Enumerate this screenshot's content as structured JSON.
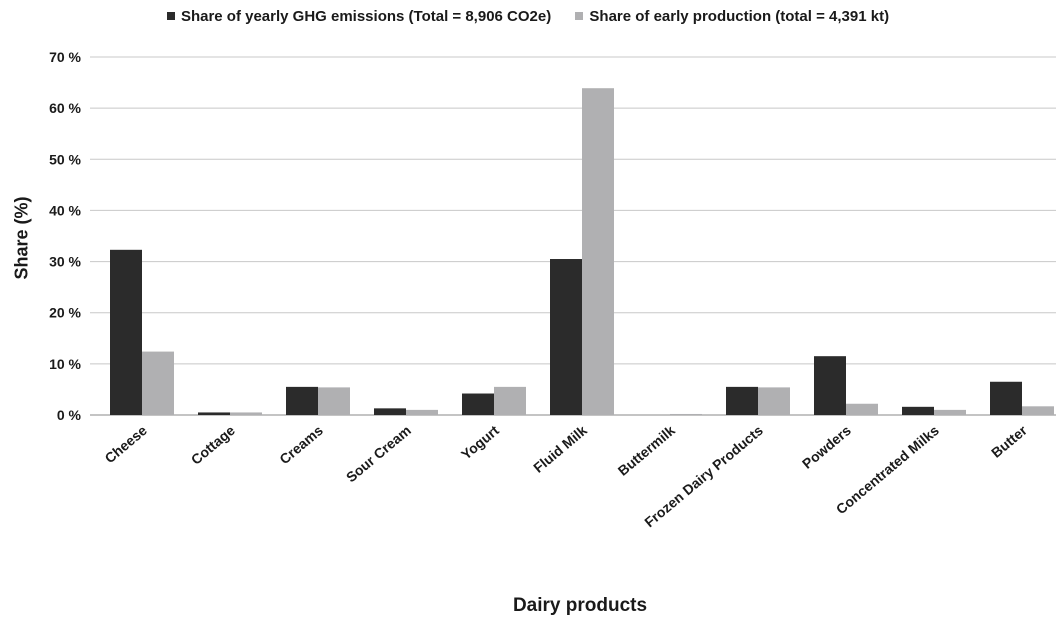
{
  "chart_data": {
    "type": "bar",
    "categories": [
      "Cheese",
      "Cottage",
      "Creams",
      "Sour Cream",
      "Yogurt",
      "Fluid Milk",
      "Buttermilk",
      "Frozen Dairy Products",
      "Powders",
      "Concentrated Milks",
      "Butter"
    ],
    "series": [
      {
        "name": "Share of yearly GHG emissions (Total = 8,906 CO2e)",
        "color": "#2b2b2b",
        "values": [
          32.3,
          0.5,
          5.5,
          1.3,
          4.2,
          30.5,
          0.0,
          5.5,
          11.5,
          1.6,
          6.5
        ]
      },
      {
        "name": "Share of early production (total = 4,391 kt)",
        "color": "#b0b0b2",
        "values": [
          12.4,
          0.5,
          5.4,
          1.0,
          5.5,
          63.9,
          0.2,
          5.4,
          2.2,
          1.0,
          1.7
        ]
      }
    ],
    "xlabel": "Dairy products",
    "ylabel": "Share (%)",
    "ylim": [
      0,
      70
    ],
    "yticks": [
      "0 %",
      "10 %",
      "20 %",
      "30 %",
      "40 %",
      "50 %",
      "60 %",
      "70 %"
    ],
    "grid": true,
    "legend_position": "top-center"
  }
}
